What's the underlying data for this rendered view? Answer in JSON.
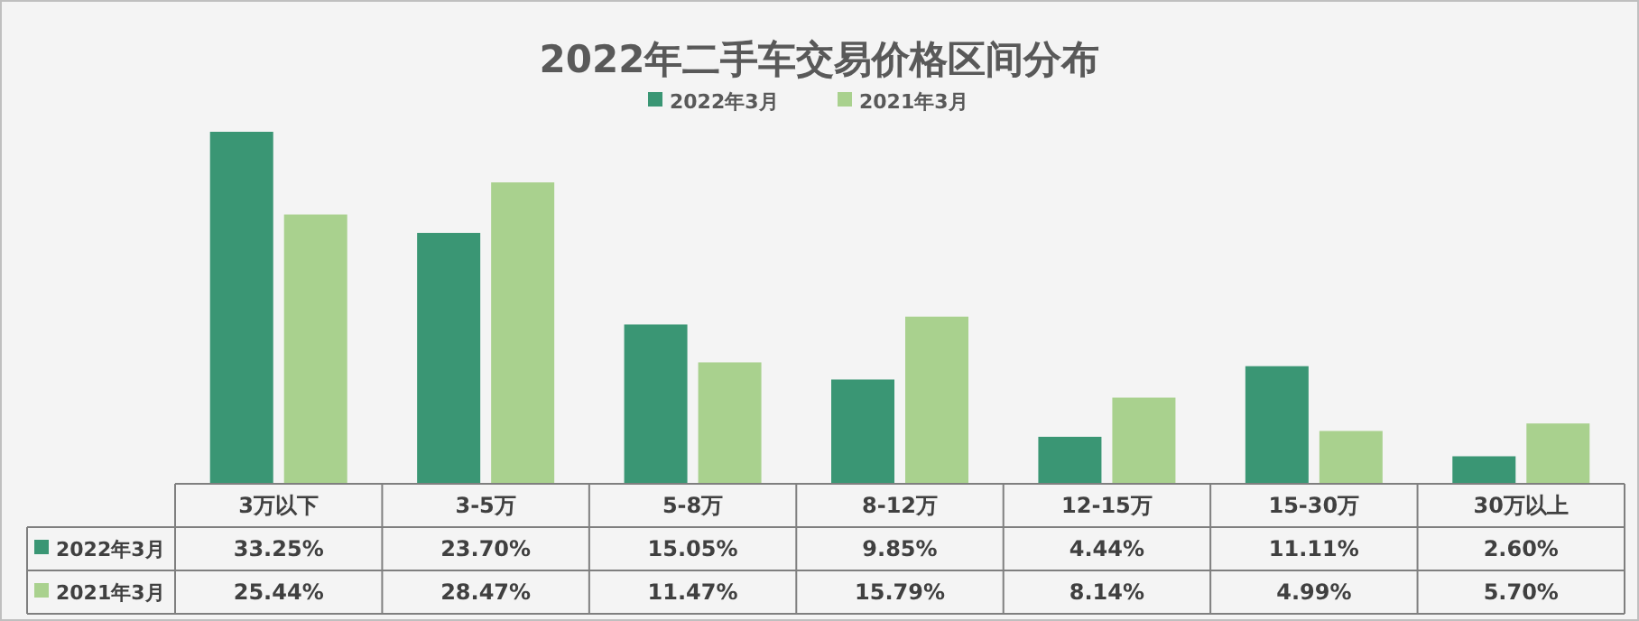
{
  "chart_data": {
    "type": "bar",
    "title": "2022年二手车交易价格区间分布",
    "categories": [
      "3万以下",
      "3-5万",
      "5-8万",
      "8-12万",
      "12-15万",
      "15-30万",
      "30万以上"
    ],
    "legend": "top",
    "series": [
      {
        "name": "2022年3月",
        "color": "#3a9674",
        "values": [
          33.25,
          23.7,
          15.05,
          9.85,
          4.44,
          11.11,
          2.6
        ],
        "value_labels": [
          "33.25%",
          "23.70%",
          "15.05%",
          "9.85%",
          "4.44%",
          "11.11%",
          "2.60%"
        ]
      },
      {
        "name": "2021年3月",
        "color": "#a9d18e",
        "values": [
          25.44,
          28.47,
          11.47,
          15.79,
          8.14,
          4.99,
          5.7
        ],
        "value_labels": [
          "25.44%",
          "28.47%",
          "11.47%",
          "15.79%",
          "8.14%",
          "4.99%",
          "5.70%"
        ]
      }
    ]
  }
}
